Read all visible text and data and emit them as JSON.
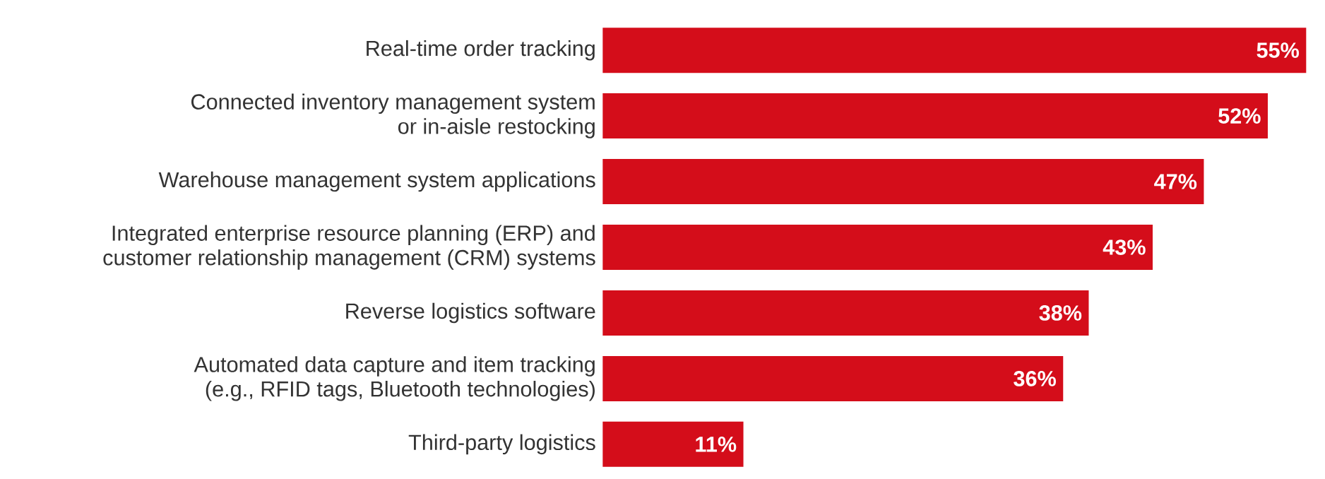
{
  "chart_data": {
    "type": "bar",
    "orientation": "horizontal",
    "categories": [
      "Real-time order tracking",
      "Connected inventory management system\nor in-aisle restocking",
      "Warehouse management system applications",
      "Integrated enterprise resource planning (ERP) and\ncustomer relationship management (CRM) systems",
      "Reverse logistics software",
      "Automated data capture and item tracking\n(e.g., RFID tags, Bluetooth technologies)",
      "Third-party logistics"
    ],
    "values": [
      55,
      52,
      47,
      43,
      38,
      36,
      11
    ],
    "value_labels": [
      "55%",
      "52%",
      "47%",
      "43%",
      "38%",
      "36%",
      "11%"
    ],
    "color": "#d40d1a"
  }
}
